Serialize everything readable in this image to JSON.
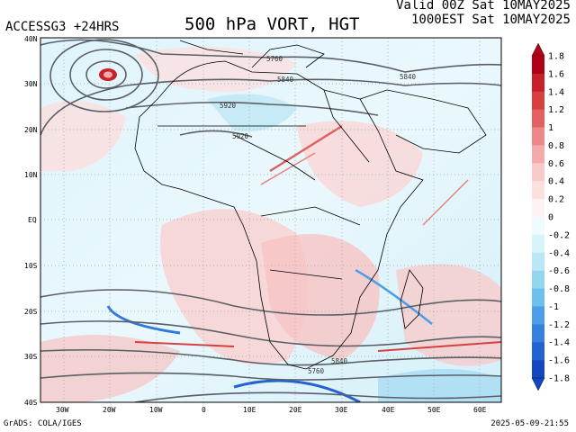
{
  "header": {
    "model_label": "ACCESSG3 +24HRS",
    "title": "500 hPa VORT, HGT",
    "valid_utc": "Valid 00Z Sat 10MAY2025",
    "valid_local": "1000EST Sat 10MAY2025"
  },
  "footer": {
    "credit": "GrADS: COLA/IGES",
    "timestamp": "2025-05-09-21:55"
  },
  "map": {
    "lon_ticks": [
      "30W",
      "20W",
      "10W",
      "0",
      "10E",
      "20E",
      "30E",
      "40E",
      "50E",
      "60E"
    ],
    "lat_ticks": [
      "40N",
      "30N",
      "20N",
      "10N",
      "EQ",
      "10S",
      "20S",
      "30S",
      "40S"
    ],
    "height_labels": [
      "5760",
      "5840",
      "5840",
      "5920",
      "5920",
      "5840",
      "5760"
    ]
  },
  "colorbar": {
    "labels": [
      "1.8",
      "1.6",
      "1.4",
      "1.2",
      "1",
      "0.8",
      "0.6",
      "0.4",
      "0.2",
      "0",
      "-0.2",
      "-0.4",
      "-0.6",
      "-0.8",
      "-1",
      "-1.2",
      "-1.4",
      "-1.6",
      "-1.8"
    ],
    "colors": [
      "#b00018",
      "#c8202a",
      "#d84040",
      "#e46060",
      "#ee8888",
      "#f5aaaa",
      "#f9c8c8",
      "#fce0e0",
      "#fff2f2",
      "#f0fbff",
      "#d6f3fb",
      "#b8e8f5",
      "#92d6f0",
      "#6cc0ee",
      "#4c9ee8",
      "#3680de",
      "#2262d2",
      "#1446c2"
    ]
  }
}
